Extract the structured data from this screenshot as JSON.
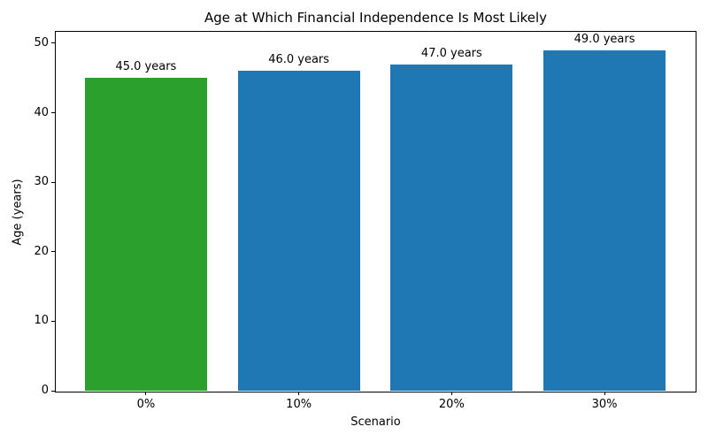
{
  "chart_data": {
    "type": "bar",
    "title": "Age at Which Financial Independence Is Most Likely",
    "xlabel": "Scenario",
    "ylabel": "Age (years)",
    "categories": [
      "0%",
      "10%",
      "20%",
      "30%"
    ],
    "values": [
      45.0,
      46.0,
      47.0,
      49.0
    ],
    "bar_labels": [
      "45.0 years",
      "46.0 years",
      "47.0 years",
      "49.0 years"
    ],
    "bar_colors": [
      "#2ca02c",
      "#1f77b4",
      "#1f77b4",
      "#1f77b4"
    ],
    "y_ticks": [
      0,
      10,
      20,
      30,
      40,
      50
    ],
    "ylim": [
      0,
      51.65
    ],
    "grid": false,
    "legend": "none",
    "background_color": "#ffffff",
    "text_color": "#000000"
  }
}
